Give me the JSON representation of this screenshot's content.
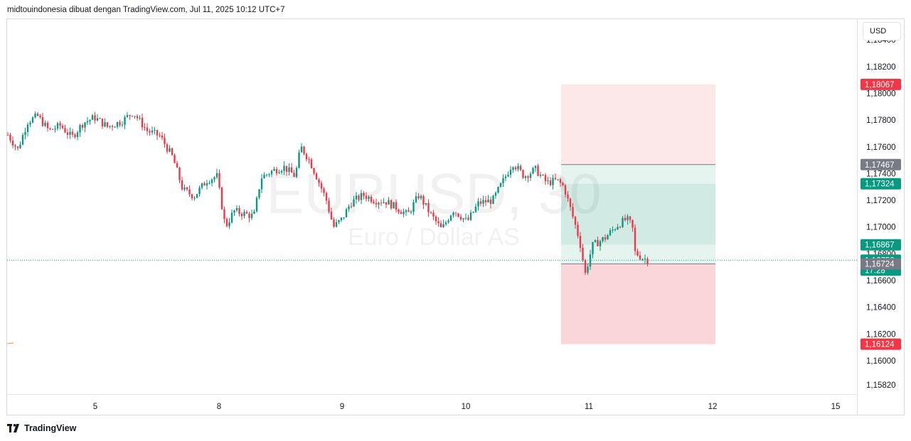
{
  "header": {
    "text": "midtouindonesia dibuat dengan TradingView.com, Jul 11, 2025 10:12 UTC+7"
  },
  "currency_button": "USD",
  "watermark": {
    "symbol": "EURUSD, 30",
    "description": "Euro / Dollar AS"
  },
  "footer": {
    "brand": "TradingView"
  },
  "colors": {
    "up": "#089981",
    "down": "#f23645",
    "target_zone": "#d1ebe4",
    "stop_zone": "#fad6d9",
    "entry_zone_light": "#e6f4f0",
    "stop_zone_light": "#fde8e9",
    "current_line": "#22ab94",
    "neutral_label": "#787b86"
  },
  "chart_data": {
    "type": "candlestick",
    "symbol": "EURUSD",
    "timeframe": "30",
    "y_range": [
      1.1575,
      1.18555
    ],
    "y_ticks": [
      "1,18400",
      "1,18200",
      "1,18000",
      "1,17800",
      "1,17600",
      "1,17400",
      "1,17200",
      "1,17000",
      "1,16800",
      "1,16600",
      "1,16400",
      "1,16200",
      "1,16000",
      "1,15820"
    ],
    "x_ticks": [
      "5",
      "8",
      "9",
      "10",
      "11",
      "12",
      "15"
    ],
    "price_labels": [
      {
        "text": "1,18067",
        "kind": "stop_top",
        "value": 1.18067
      },
      {
        "text": "1,17467",
        "kind": "line",
        "value": 1.17467
      },
      {
        "text": "1,17324",
        "kind": "target",
        "value": 1.17324
      },
      {
        "text": "1,16867",
        "kind": "entry",
        "value": 1.16867
      },
      {
        "text": "1,16752",
        "kind": "current",
        "value": 1.16752,
        "countdown": "17:28"
      },
      {
        "text": "1,16724",
        "kind": "line",
        "value": 1.16724
      },
      {
        "text": "1,16124",
        "kind": "stop_bottom",
        "value": 1.16124
      }
    ],
    "current_price": 1.16752,
    "path": [
      [
        0,
        1.1769
      ],
      [
        14,
        1.1758
      ],
      [
        28,
        1.1779
      ],
      [
        42,
        1.1783
      ],
      [
        58,
        1.1772
      ],
      [
        74,
        1.1776
      ],
      [
        90,
        1.1767
      ],
      [
        106,
        1.1778
      ],
      [
        122,
        1.1782
      ],
      [
        140,
        1.1775
      ],
      [
        160,
        1.1779
      ],
      [
        176,
        1.1786
      ],
      [
        196,
        1.1772
      ],
      [
        214,
        1.1768
      ],
      [
        232,
        1.1752
      ],
      [
        246,
        1.1728
      ],
      [
        262,
        1.1723
      ],
      [
        280,
        1.1735
      ],
      [
        294,
        1.1738
      ],
      [
        306,
        1.17
      ],
      [
        318,
        1.1712
      ],
      [
        332,
        1.171
      ],
      [
        346,
        1.1708
      ],
      [
        356,
        1.1737
      ],
      [
        372,
        1.1742
      ],
      [
        388,
        1.1745
      ],
      [
        404,
        1.1738
      ],
      [
        412,
        1.176
      ],
      [
        424,
        1.175
      ],
      [
        434,
        1.1738
      ],
      [
        448,
        1.172
      ],
      [
        458,
        1.17
      ],
      [
        470,
        1.1706
      ],
      [
        482,
        1.1718
      ],
      [
        500,
        1.1724
      ],
      [
        516,
        1.172
      ],
      [
        532,
        1.1719
      ],
      [
        548,
        1.1714
      ],
      [
        562,
        1.1709
      ],
      [
        578,
        1.1724
      ],
      [
        594,
        1.171
      ],
      [
        610,
        1.1698
      ],
      [
        626,
        1.1713
      ],
      [
        646,
        1.1704
      ],
      [
        662,
        1.1718
      ],
      [
        682,
        1.172
      ],
      [
        700,
        1.1738
      ],
      [
        710,
        1.1748
      ],
      [
        726,
        1.1738
      ],
      [
        742,
        1.1743
      ],
      [
        758,
        1.1733
      ],
      [
        772,
        1.1735
      ],
      [
        782,
        1.173
      ],
      [
        796,
        1.1705
      ],
      [
        804,
        1.169
      ],
      [
        812,
        1.1665
      ],
      [
        822,
        1.1686
      ],
      [
        840,
        1.1692
      ],
      [
        856,
        1.1701
      ],
      [
        870,
        1.1706
      ],
      [
        878,
        1.1701
      ],
      [
        882,
        1.1681
      ],
      [
        892,
        1.1677
      ],
      [
        902,
        1.1675
      ]
    ],
    "position": {
      "type": "long",
      "x_start_label": "10",
      "entry": 1.16867,
      "target": 1.17324,
      "stop_top": 1.18067,
      "line_upper": 1.17467,
      "line_lower": 1.16724,
      "stop_bottom": 1.16124
    }
  }
}
